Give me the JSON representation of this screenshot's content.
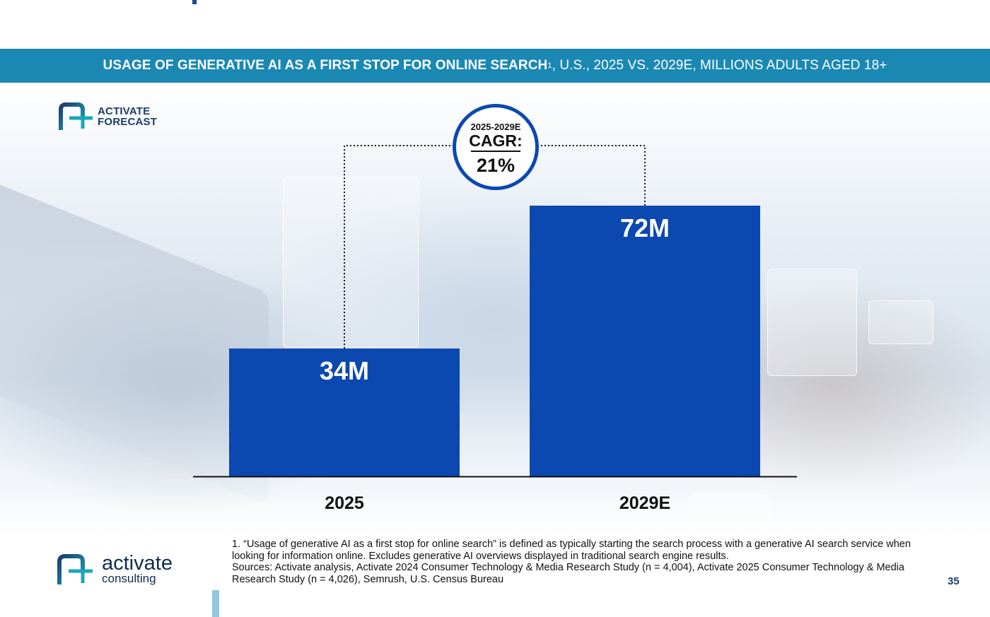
{
  "banner": {
    "title_bold": "USAGE OF GENERATIVE AI AS A FIRST STOP FOR ONLINE SEARCH",
    "footnote_mark": "1",
    "title_rest": ", U.S., 2025 VS. 2029E, MILLIONS ADULTS AGED 18+"
  },
  "badge": {
    "line1": "ACTIVATE",
    "line2": "FORECAST",
    "icon": "activate-logo-icon"
  },
  "cagr": {
    "range": "2025-2029E",
    "label": "CAGR:",
    "value": "21%"
  },
  "colors": {
    "banner": "#1b88b4",
    "bar": "#0b48b0",
    "cagr_ring": "#0b48b0",
    "brand_dark": "#1b3d6e",
    "brand_teal": "#1ba7b8"
  },
  "chart_data": {
    "type": "bar",
    "categories": [
      "2025",
      "2029E"
    ],
    "values": [
      34,
      72
    ],
    "data_labels": [
      "34M",
      "72M"
    ],
    "title": "USAGE OF GENERATIVE AI AS A FIRST STOP FOR ONLINE SEARCH, U.S., 2025 VS. 2029E, MILLIONS ADULTS AGED 18+",
    "xlabel": "",
    "ylabel": "",
    "ylim": [
      0,
      72
    ],
    "grid": false,
    "legend": "none",
    "annotations": [
      "2025-2029E CAGR: 21%"
    ]
  },
  "footnotes": {
    "note1": "1. “Usage of generative AI as a first stop for online search” is defined as typically starting the search process with a generative AI search service when looking for information online. Excludes generative AI overviews displayed in traditional search engine results.",
    "sources": "Sources: Activate analysis, Activate 2024 Consumer Technology & Media Research Study (n = 4,004), Activate 2025 Consumer Technology & Media Research Study (n = 4,026), Semrush, U.S. Census Bureau"
  },
  "logo": {
    "name": "activate",
    "sub": "consulting",
    "icon": "activate-logo-icon"
  },
  "page_number": "35"
}
